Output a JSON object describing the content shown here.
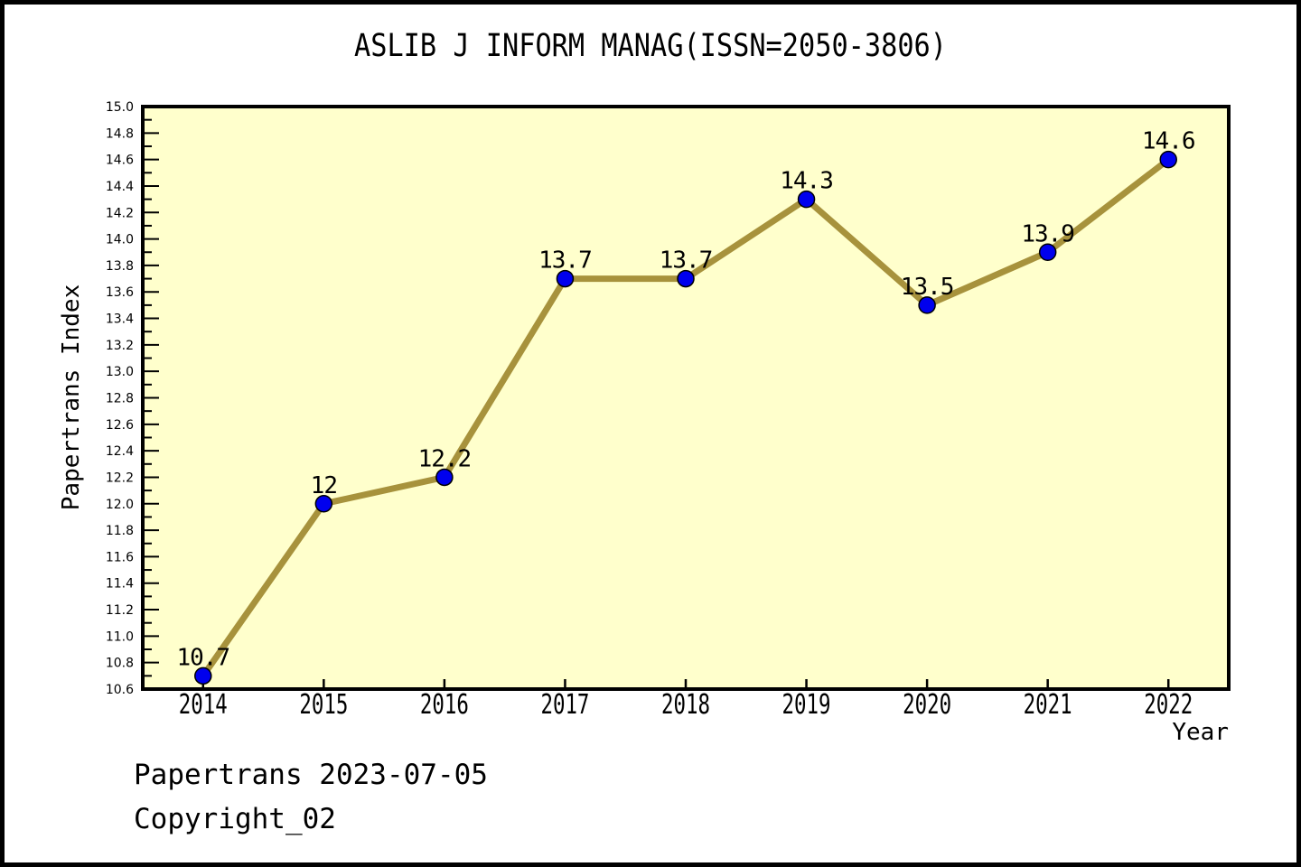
{
  "page": {
    "background": "#FFFFFF",
    "frame_border_color": "#000000"
  },
  "footer": {
    "line1": "Papertrans 2023-07-05",
    "line2": "Copyright_02"
  },
  "chart_data": {
    "type": "line",
    "title": "ASLIB J INFORM MANAG(ISSN=2050-3806)",
    "xlabel": "Year",
    "ylabel": "Papertrans Index",
    "categories": [
      "2014",
      "2015",
      "2016",
      "2017",
      "2018",
      "2019",
      "2020",
      "2021",
      "2022"
    ],
    "values": [
      10.7,
      12,
      12.2,
      13.7,
      13.7,
      14.3,
      13.5,
      13.9,
      14.6
    ],
    "point_labels": [
      "10.7",
      "12",
      "12.2",
      "13.7",
      "13.7",
      "14.3",
      "13.5",
      "13.9",
      "14.6"
    ],
    "ylim": [
      10.6,
      15.0
    ],
    "y_major_step": 0.2,
    "y_minor_step": 0.1,
    "grid": false,
    "legend_position": "none",
    "colors": {
      "line": "#A7923C",
      "marker": "#0000EE",
      "marker_edge": "#000000",
      "plot_background": "#FFFFCC",
      "axis": "#000000",
      "text": "#000000"
    }
  }
}
